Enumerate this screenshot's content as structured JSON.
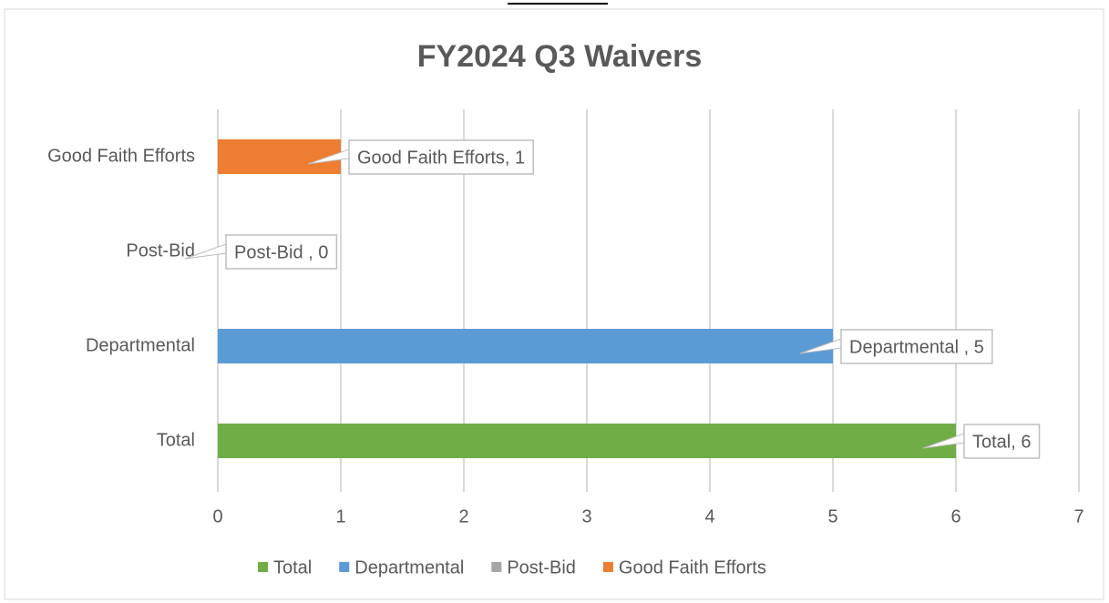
{
  "chart_data": {
    "type": "bar",
    "orientation": "horizontal",
    "title": "FY2024 Q3 Waivers",
    "categories": [
      "Total",
      "Departmental",
      "Post-Bid",
      "Good Faith Efforts"
    ],
    "values": [
      6,
      5,
      0,
      1
    ],
    "value_labels": [
      "Total, 6",
      "Departmental , 5",
      "Post-Bid , 0",
      "Good Faith Efforts, 1"
    ],
    "colors": [
      "#70ad47",
      "#5b9bd5",
      "#a5a5a5",
      "#ed7d31"
    ],
    "xlim": [
      0,
      7
    ],
    "xticks": [
      0,
      1,
      2,
      3,
      4,
      5,
      6,
      7
    ],
    "grid": true,
    "legend": "bottom"
  }
}
